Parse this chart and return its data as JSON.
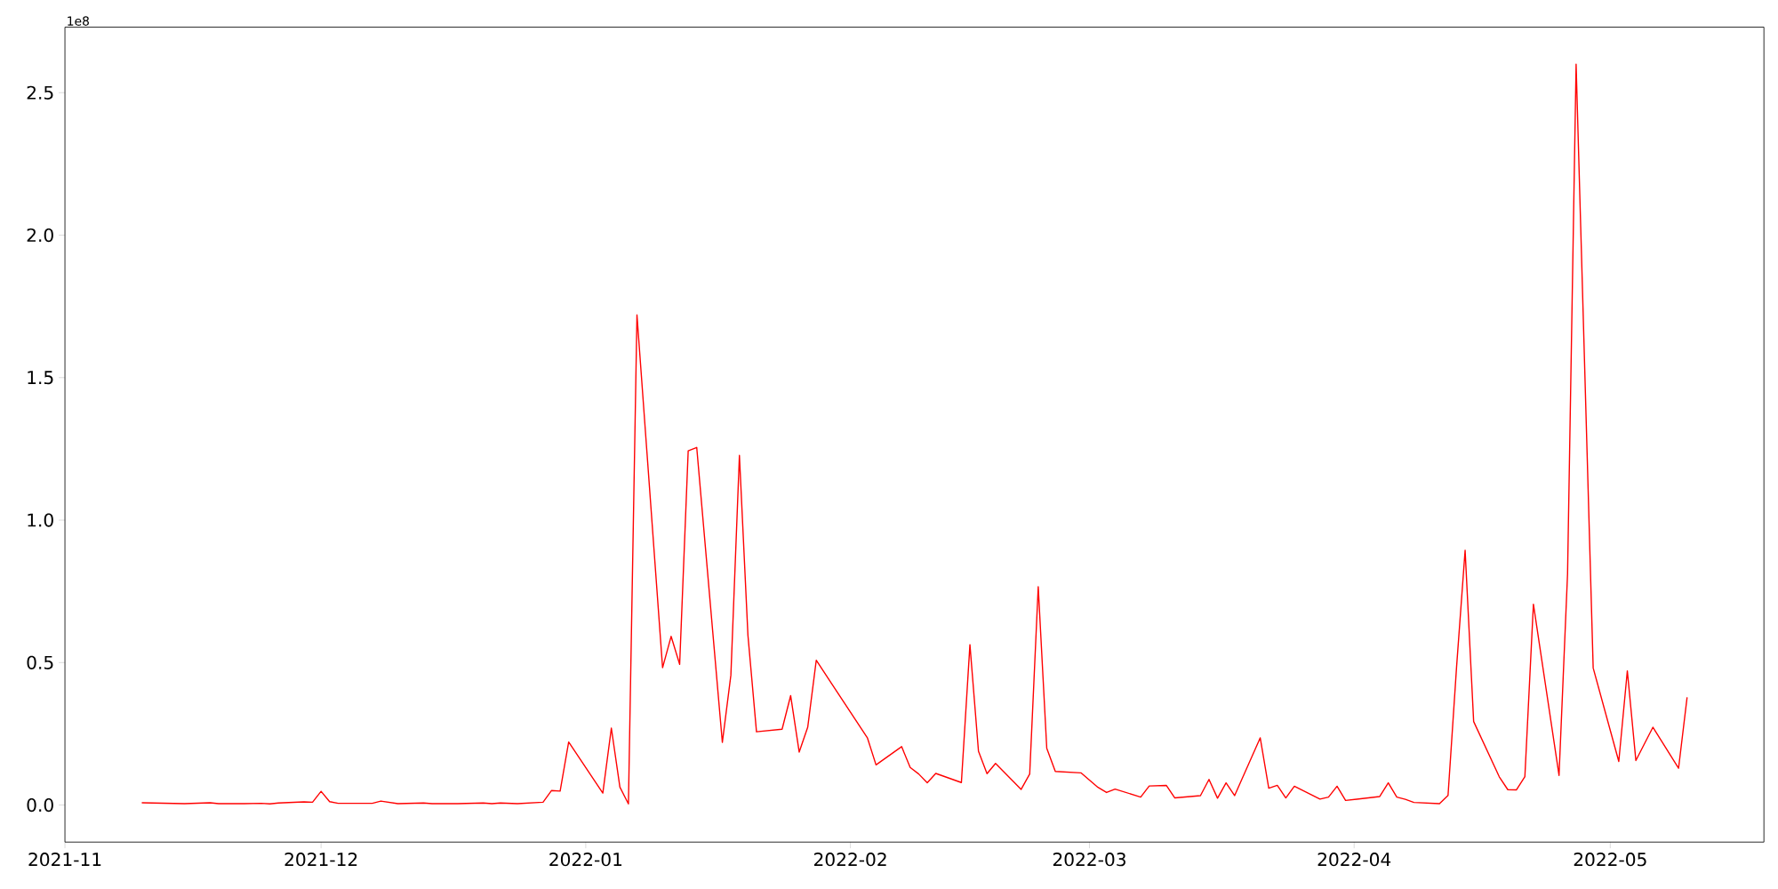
{
  "chart_data": {
    "type": "line",
    "x": [
      "2021-11-10",
      "2021-11-15",
      "2021-11-18",
      "2021-11-19",
      "2021-11-22",
      "2021-11-24",
      "2021-11-25",
      "2021-11-26",
      "2021-11-29",
      "2021-11-30",
      "2021-12-01",
      "2021-12-02",
      "2021-12-03",
      "2021-12-07",
      "2021-12-08",
      "2021-12-10",
      "2021-12-13",
      "2021-12-14",
      "2021-12-17",
      "2021-12-20",
      "2021-12-21",
      "2021-12-22",
      "2021-12-24",
      "2021-12-27",
      "2021-12-28",
      "2021-12-29",
      "2021-12-30",
      "2022-01-03",
      "2022-01-04",
      "2022-01-05",
      "2022-01-06",
      "2022-01-07",
      "2022-01-10",
      "2022-01-11",
      "2022-01-12",
      "2022-01-13",
      "2022-01-14",
      "2022-01-17",
      "2022-01-18",
      "2022-01-19",
      "2022-01-20",
      "2022-01-21",
      "2022-01-24",
      "2022-01-25",
      "2022-01-26",
      "2022-01-27",
      "2022-01-28",
      "2022-02-03",
      "2022-02-04",
      "2022-02-07",
      "2022-02-08",
      "2022-02-09",
      "2022-02-10",
      "2022-02-11",
      "2022-02-14",
      "2022-02-15",
      "2022-02-16",
      "2022-02-17",
      "2022-02-18",
      "2022-02-21",
      "2022-02-22",
      "2022-02-23",
      "2022-02-24",
      "2022-02-25",
      "2022-02-28",
      "2022-03-02",
      "2022-03-03",
      "2022-03-04",
      "2022-03-07",
      "2022-03-08",
      "2022-03-10",
      "2022-03-11",
      "2022-03-14",
      "2022-03-15",
      "2022-03-16",
      "2022-03-17",
      "2022-03-18",
      "2022-03-21",
      "2022-03-22",
      "2022-03-23",
      "2022-03-24",
      "2022-03-25",
      "2022-03-28",
      "2022-03-29",
      "2022-03-30",
      "2022-03-31",
      "2022-04-04",
      "2022-04-05",
      "2022-04-06",
      "2022-04-07",
      "2022-04-08",
      "2022-04-11",
      "2022-04-12",
      "2022-04-13",
      "2022-04-14",
      "2022-04-15",
      "2022-04-18",
      "2022-04-19",
      "2022-04-20",
      "2022-04-21",
      "2022-04-22",
      "2022-04-25",
      "2022-04-26",
      "2022-04-27",
      "2022-04-29",
      "2022-05-02",
      "2022-05-03",
      "2022-05-04",
      "2022-05-06",
      "2022-05-09",
      "2022-05-10"
    ],
    "values": [
      0.008,
      0.005,
      0.008,
      0.005,
      0.005,
      0.006,
      0.004,
      0.007,
      0.011,
      0.01,
      0.048,
      0.012,
      0.006,
      0.006,
      0.014,
      0.005,
      0.007,
      0.005,
      0.005,
      0.007,
      0.005,
      0.007,
      0.005,
      0.01,
      0.051,
      0.049,
      0.221,
      0.042,
      0.27,
      0.063,
      0.004,
      1.72,
      0.482,
      0.592,
      0.494,
      1.243,
      1.255,
      0.22,
      0.456,
      1.227,
      0.595,
      0.257,
      0.266,
      0.384,
      0.186,
      0.273,
      0.508,
      0.235,
      0.141,
      0.205,
      0.132,
      0.109,
      0.078,
      0.111,
      0.079,
      0.563,
      0.189,
      0.11,
      0.146,
      0.055,
      0.109,
      0.766,
      0.199,
      0.118,
      0.113,
      0.062,
      0.044,
      0.056,
      0.028,
      0.067,
      0.069,
      0.025,
      0.033,
      0.09,
      0.024,
      0.078,
      0.033,
      0.236,
      0.059,
      0.069,
      0.025,
      0.066,
      0.021,
      0.028,
      0.066,
      0.016,
      0.03,
      0.078,
      0.028,
      0.02,
      0.009,
      0.005,
      0.034,
      0.485,
      0.894,
      0.293,
      0.099,
      0.054,
      0.053,
      0.1,
      0.705,
      0.104,
      0.812,
      2.6,
      0.481,
      0.153,
      0.471,
      0.156,
      0.273,
      0.129,
      0.378
    ],
    "color": "#ff0000",
    "xlim": [
      "2021-11-01",
      "2022-05-19"
    ],
    "ylim": [
      -0.13,
      2.73
    ],
    "xticks": [
      {
        "value": "2021-11-01",
        "label": "2021-11"
      },
      {
        "value": "2021-12-01",
        "label": "2021-12"
      },
      {
        "value": "2022-01-01",
        "label": "2022-01"
      },
      {
        "value": "2022-02-01",
        "label": "2022-02"
      },
      {
        "value": "2022-03-01",
        "label": "2022-03"
      },
      {
        "value": "2022-04-01",
        "label": "2022-04"
      },
      {
        "value": "2022-05-01",
        "label": "2022-05"
      }
    ],
    "yticks": [
      {
        "value": 0,
        "label": "0.0"
      },
      0.5,
      {
        "value": 1,
        "label": "1.0"
      },
      1.5,
      {
        "value": 2,
        "label": "2.0"
      },
      2.5
    ],
    "annotations": [
      "1e8"
    ]
  }
}
